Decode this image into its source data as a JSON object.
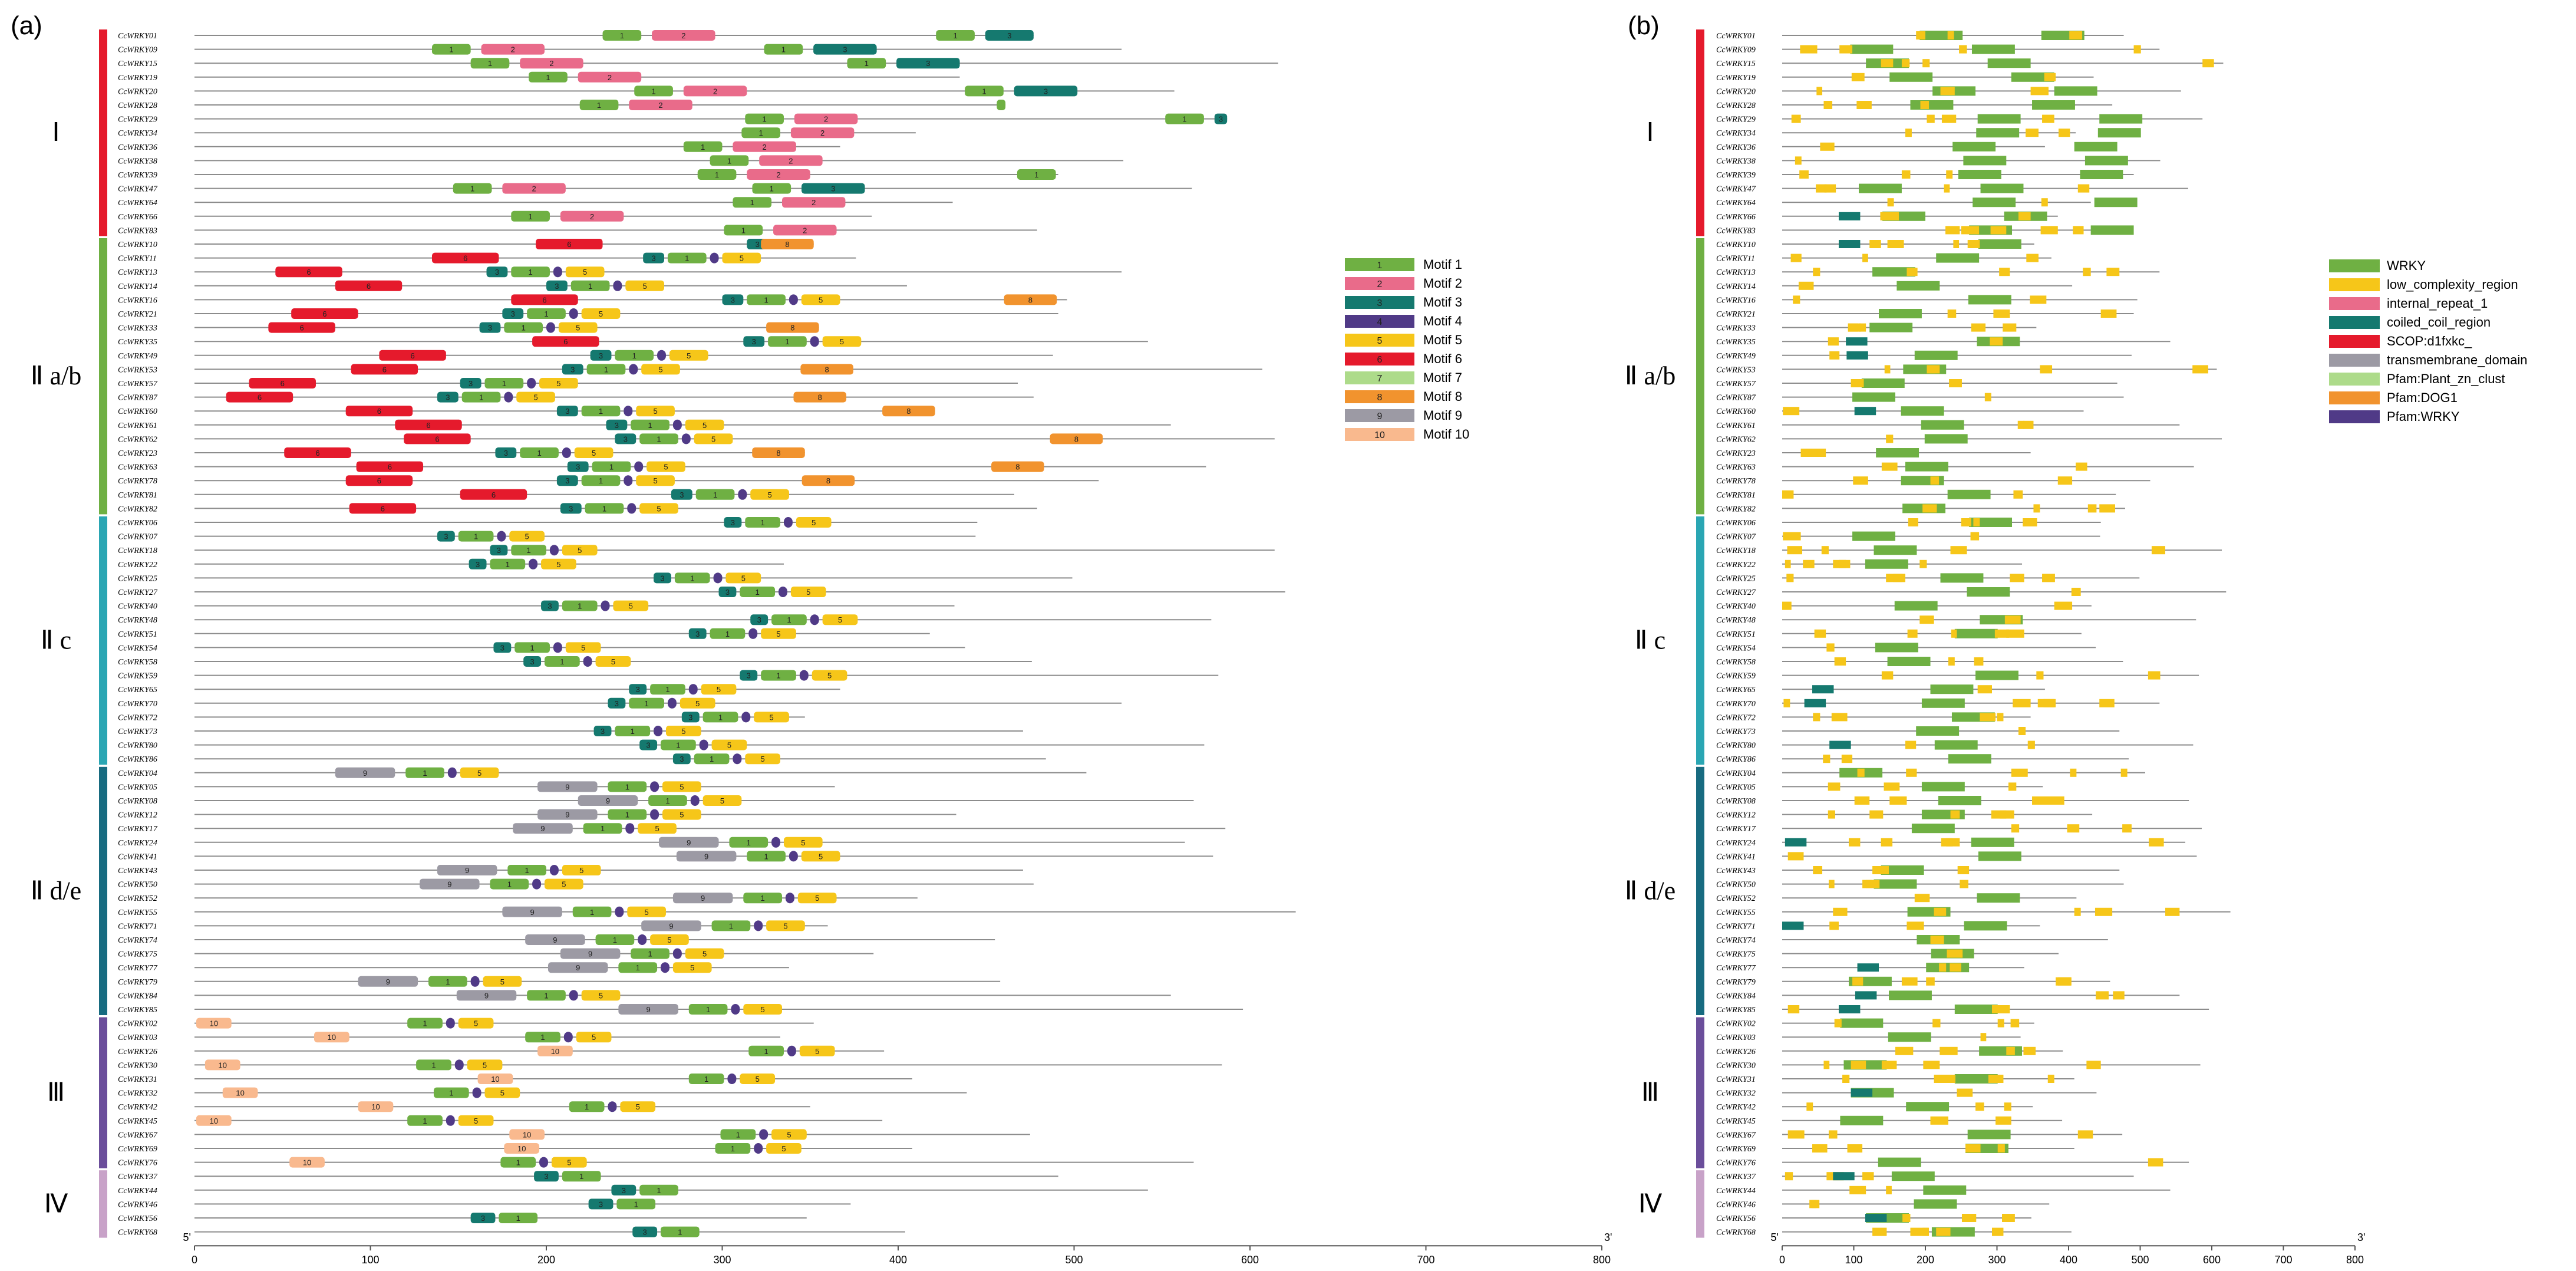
{
  "panelA": {
    "label": "(a)",
    "axis": {
      "min": 0,
      "max": 800,
      "ticks": [
        0,
        100,
        200,
        300,
        400,
        500,
        600,
        700,
        800
      ],
      "start_label": "5'",
      "end_label": "3'"
    },
    "legend": [
      {
        "id": 1,
        "label": "Motif 1",
        "color": "#6fb043"
      },
      {
        "id": 2,
        "label": "Motif 2",
        "color": "#e96b8a"
      },
      {
        "id": 3,
        "label": "Motif 3",
        "color": "#15796f"
      },
      {
        "id": 4,
        "label": "Motif 4",
        "color": "#503a87"
      },
      {
        "id": 5,
        "label": "Motif 5",
        "color": "#f6c619"
      },
      {
        "id": 6,
        "label": "Motif 6",
        "color": "#e51a2c"
      },
      {
        "id": 7,
        "label": "Motif 7",
        "color": "#addb8a"
      },
      {
        "id": 8,
        "label": "Motif 8",
        "color": "#f1932e"
      },
      {
        "id": 9,
        "label": "Motif 9",
        "color": "#9c9aa4"
      },
      {
        "id": 10,
        "label": "Motif 10",
        "color": "#f9b98e"
      }
    ]
  },
  "panelB": {
    "label": "(b)",
    "axis": {
      "min": 0,
      "max": 800,
      "ticks": [
        0,
        100,
        200,
        300,
        400,
        500,
        600,
        700,
        800
      ],
      "start_label": "5'",
      "end_label": "3'"
    },
    "legend": [
      {
        "label": "WRKY",
        "color": "#6fb043"
      },
      {
        "label": "low_complexity_region",
        "color": "#f6c619"
      },
      {
        "label": "internal_repeat_1",
        "color": "#e96b8a"
      },
      {
        "label": "coiled_coil_region",
        "color": "#15796f"
      },
      {
        "label": "SCOP:d1fxkc_",
        "color": "#e51a2c"
      },
      {
        "label": "transmembrane_domain",
        "color": "#9c9aa4"
      },
      {
        "label": "Pfam:Plant_zn_clust",
        "color": "#addb8a"
      },
      {
        "label": "Pfam:DOG1",
        "color": "#f1932e"
      },
      {
        "label": "Pfam:WRKY",
        "color": "#503a87"
      }
    ]
  },
  "groups": [
    {
      "name": "Ⅰ",
      "color": "#e51a2c",
      "genes": [
        "CcWRKY01",
        "CcWRKY09",
        "CcWRKY15",
        "CcWRKY19",
        "CcWRKY20",
        "CcWRKY28",
        "CcWRKY29",
        "CcWRKY34",
        "CcWRKY36",
        "CcWRKY38",
        "CcWRKY39",
        "CcWRKY47",
        "CcWRKY64",
        "CcWRKY66",
        "CcWRKY83"
      ]
    },
    {
      "name": "Ⅱ a/b",
      "color": "#6fb043",
      "genes": [
        "CcWRKY10",
        "CcWRKY11",
        "CcWRKY13",
        "CcWRKY14",
        "CcWRKY16",
        "CcWRKY21",
        "CcWRKY33",
        "CcWRKY35",
        "CcWRKY49",
        "CcWRKY53",
        "CcWRKY57",
        "CcWRKY87",
        "CcWRKY60",
        "CcWRKY61",
        "CcWRKY62",
        "CcWRKY23",
        "CcWRKY63",
        "CcWRKY78",
        "CcWRKY81",
        "CcWRKY82"
      ]
    },
    {
      "name": "Ⅱ c",
      "color": "#2aa6b3",
      "genes": [
        "CcWRKY06",
        "CcWRKY07",
        "CcWRKY18",
        "CcWRKY22",
        "CcWRKY25",
        "CcWRKY27",
        "CcWRKY40",
        "CcWRKY48",
        "CcWRKY51",
        "CcWRKY54",
        "CcWRKY58",
        "CcWRKY59",
        "CcWRKY65",
        "CcWRKY70",
        "CcWRKY72",
        "CcWRKY73",
        "CcWRKY80",
        "CcWRKY86"
      ]
    },
    {
      "name": "Ⅱ d/e",
      "color": "#176b80",
      "genes": [
        "CcWRKY04",
        "CcWRKY05",
        "CcWRKY08",
        "CcWRKY12",
        "CcWRKY17",
        "CcWRKY24",
        "CcWRKY41",
        "CcWRKY43",
        "CcWRKY50",
        "CcWRKY52",
        "CcWRKY55",
        "CcWRKY71",
        "CcWRKY74",
        "CcWRKY75",
        "CcWRKY77",
        "CcWRKY79",
        "CcWRKY84",
        "CcWRKY85"
      ]
    },
    {
      "name": "Ⅲ",
      "color": "#6b4e9b",
      "genes": [
        "CcWRKY02",
        "CcWRKY03",
        "CcWRKY26",
        "CcWRKY30",
        "CcWRKY31",
        "CcWRKY32",
        "CcWRKY42",
        "CcWRKY45",
        "CcWRKY67",
        "CcWRKY69",
        "CcWRKY76"
      ]
    },
    {
      "name": "Ⅳ",
      "color": "#c8a2c8",
      "genes": [
        "CcWRKY37",
        "CcWRKY44",
        "CcWRKY46",
        "CcWRKY56",
        "CcWRKY68"
      ]
    }
  ]
}
